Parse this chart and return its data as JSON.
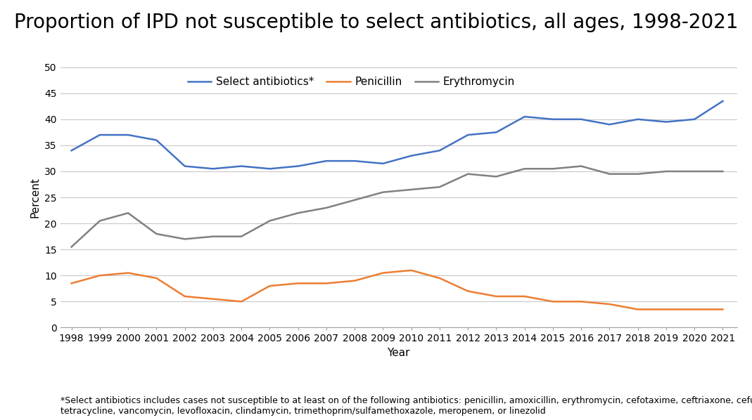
{
  "title": "Proportion of IPD not susceptible to select antibiotics, all ages, 1998-2021",
  "xlabel": "Year",
  "ylabel": "Percent",
  "years": [
    1998,
    1999,
    2000,
    2001,
    2002,
    2003,
    2004,
    2005,
    2006,
    2007,
    2008,
    2009,
    2010,
    2011,
    2012,
    2013,
    2014,
    2015,
    2016,
    2017,
    2018,
    2019,
    2020,
    2021
  ],
  "select_antibiotics": [
    34,
    37,
    37,
    36,
    31,
    30.5,
    31,
    30.5,
    31,
    32,
    32,
    31.5,
    33,
    34,
    37,
    37.5,
    40.5,
    40,
    40,
    39,
    40,
    39.5,
    40,
    43.5
  ],
  "penicillin": [
    8.5,
    10,
    10.5,
    9.5,
    6,
    5.5,
    5,
    8,
    8.5,
    8.5,
    9,
    10.5,
    11,
    9.5,
    7,
    6,
    6,
    5,
    5,
    4.5,
    3.5,
    3.5,
    3.5,
    3.5
  ],
  "erythromycin": [
    15.5,
    20.5,
    22,
    18,
    17,
    17.5,
    17.5,
    20.5,
    22,
    23,
    24.5,
    26,
    26.5,
    27,
    29.5,
    29,
    30.5,
    30.5,
    31,
    29.5,
    29.5,
    30,
    30,
    30
  ],
  "select_color": "#4472C4",
  "penicillin_color": "#ED7D31",
  "erythromycin_color": "#808080",
  "ylim": [
    0,
    50
  ],
  "yticks": [
    0,
    5,
    10,
    15,
    20,
    25,
    30,
    35,
    40,
    45,
    50
  ],
  "legend_labels": [
    "Select antibiotics*",
    "Penicillin",
    "Erythromycin"
  ],
  "footnote": "*Select antibiotics includes cases not susceptible to at least on of the following antibiotics: penicillin, amoxicillin, erythromycin, cefotaxime, ceftriaxone, cefuroxime,\ntetracycline, vancomycin, levofloxacin, clindamycin, trimethoprim/sulfamethoxazole, meropenem, or linezolid",
  "title_fontsize": 20,
  "axis_fontsize": 11,
  "tick_fontsize": 10,
  "legend_fontsize": 11,
  "footnote_fontsize": 9,
  "line_width": 1.8,
  "bg_color": "#FFFFFF",
  "grid_color": "#C8C8C8"
}
